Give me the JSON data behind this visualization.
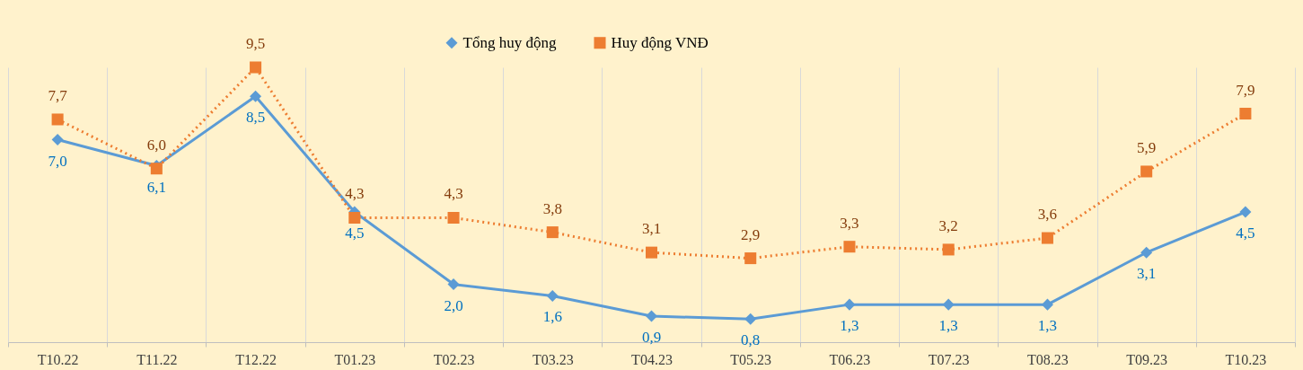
{
  "chart_data": {
    "type": "line",
    "categories": [
      "T10.22",
      "T11.22",
      "T12.22",
      "T01.23",
      "T02.23",
      "T03.23",
      "T04.23",
      "T05.23",
      "T06.23",
      "T07.23",
      "T08.23",
      "T09.23",
      "T10.23"
    ],
    "series": [
      {
        "name": "Tổng huy động",
        "color": "#5b9bd5",
        "marker": "diamond",
        "line_style": "solid",
        "values": [
          7.0,
          6.1,
          8.5,
          4.5,
          2.0,
          1.6,
          0.9,
          0.8,
          1.3,
          1.3,
          1.3,
          3.1,
          4.5
        ],
        "value_labels": [
          "7,0",
          "6,1",
          "8,5",
          "4,5",
          "2,0",
          "1,6",
          "0,9",
          "0,8",
          "1,3",
          "1,3",
          "1,3",
          "3,1",
          "4,5"
        ]
      },
      {
        "name": "Huy động VNĐ",
        "color": "#ed7d31",
        "marker": "square",
        "line_style": "dotted",
        "values": [
          7.7,
          6.0,
          9.5,
          4.3,
          4.3,
          3.8,
          3.1,
          2.9,
          3.3,
          3.2,
          3.6,
          5.9,
          7.9
        ],
        "value_labels": [
          "7,7",
          "6,0",
          "9,5",
          "4,3",
          "4,3",
          "3,8",
          "3,1",
          "2,9",
          "3,3",
          "3,2",
          "3,6",
          "5,9",
          "7,9"
        ]
      }
    ],
    "grid": "x",
    "legend": "top"
  }
}
